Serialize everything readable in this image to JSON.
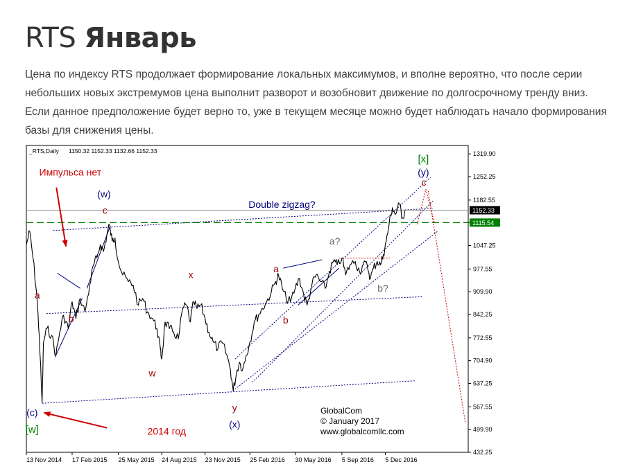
{
  "header": {
    "title_plain": "RTS ",
    "title_bold": "Январь",
    "description": "Цена по индексу RTS продолжает формирование локальных максимумов, и вполне вероятно, что после серии небольших новых экстремумов цена выполнит разворот и возобновит движение по долгосрочному тренду вниз. Если данное предположение будет верно то, уже в текущем месяце можно будет наблюдать начало формирования базы для снижения цены."
  },
  "chart_data": {
    "type": "line",
    "symbol_label": "_RTS,Daily",
    "ohlc_label": "1150.32 1152.33 1132.66 1152.33",
    "ylim": [
      432.25,
      1345
    ],
    "xlim": [
      "2014-11-13",
      "2017-05-28"
    ],
    "y_ticks": [
      "1319.90",
      "1252.25",
      "1182.55",
      "1115.54",
      "1047.25",
      "977.55",
      "909.90",
      "842.25",
      "772.55",
      "704.90",
      "637.25",
      "567.55",
      "499.90",
      "432.25"
    ],
    "x_ticks": [
      {
        "label": "13 Nov 2014",
        "date": "2014-11-13"
      },
      {
        "label": "17 Feb 2015",
        "date": "2015-02-17"
      },
      {
        "label": "25 May 2015",
        "date": "2015-05-25"
      },
      {
        "label": "24 Aug 2015",
        "date": "2015-08-24"
      },
      {
        "label": "23 Nov 2015",
        "date": "2015-11-23"
      },
      {
        "label": "25 Feb 2016",
        "date": "2016-02-25"
      },
      {
        "label": "30 May 2016",
        "date": "2016-05-30"
      },
      {
        "label": "5 Sep 2016",
        "date": "2016-09-05"
      },
      {
        "label": "5 Dec 2016",
        "date": "2016-12-05"
      }
    ],
    "price_labels": [
      {
        "text": "1152.33",
        "value": 1152.33,
        "color": "#000000"
      },
      {
        "text": "1115.54",
        "value": 1115.54,
        "color": "#008000"
      }
    ],
    "series": [
      {
        "color": "#000000",
        "points": [
          [
            "2014-11-13",
            1050
          ],
          [
            "2014-11-20",
            1090
          ],
          [
            "2014-11-27",
            1010
          ],
          [
            "2014-12-05",
            900
          ],
          [
            "2014-12-10",
            780
          ],
          [
            "2014-12-16",
            580
          ],
          [
            "2014-12-19",
            760
          ],
          [
            "2014-12-26",
            800
          ],
          [
            "2015-01-05",
            780
          ],
          [
            "2015-01-14",
            720
          ],
          [
            "2015-01-22",
            790
          ],
          [
            "2015-01-30",
            840
          ],
          [
            "2015-02-09",
            800
          ],
          [
            "2015-02-17",
            880
          ],
          [
            "2015-02-25",
            830
          ],
          [
            "2015-03-06",
            890
          ],
          [
            "2015-03-16",
            850
          ],
          [
            "2015-03-26",
            930
          ],
          [
            "2015-04-03",
            990
          ],
          [
            "2015-04-10",
            1010
          ],
          [
            "2015-04-17",
            1050
          ],
          [
            "2015-04-24",
            1030
          ],
          [
            "2015-05-01",
            1080
          ],
          [
            "2015-05-06",
            1110
          ],
          [
            "2015-05-12",
            1060
          ],
          [
            "2015-05-18",
            1070
          ],
          [
            "2015-05-25",
            1000
          ],
          [
            "2015-06-03",
            960
          ],
          [
            "2015-06-15",
            940
          ],
          [
            "2015-06-25",
            930
          ],
          [
            "2015-07-06",
            870
          ],
          [
            "2015-07-15",
            890
          ],
          [
            "2015-07-25",
            850
          ],
          [
            "2015-08-05",
            830
          ],
          [
            "2015-08-14",
            800
          ],
          [
            "2015-08-21",
            740
          ],
          [
            "2015-08-24",
            710
          ],
          [
            "2015-08-31",
            820
          ],
          [
            "2015-09-09",
            800
          ],
          [
            "2015-09-18",
            790
          ],
          [
            "2015-09-28",
            770
          ],
          [
            "2015-10-07",
            860
          ],
          [
            "2015-10-15",
            870
          ],
          [
            "2015-10-23",
            820
          ],
          [
            "2015-10-30",
            880
          ],
          [
            "2015-11-06",
            860
          ],
          [
            "2015-11-14",
            870
          ],
          [
            "2015-11-23",
            830
          ],
          [
            "2015-12-01",
            790
          ],
          [
            "2015-12-10",
            760
          ],
          [
            "2015-12-20",
            740
          ],
          [
            "2015-12-28",
            760
          ],
          [
            "2016-01-08",
            720
          ],
          [
            "2016-01-15",
            680
          ],
          [
            "2016-01-21",
            615
          ],
          [
            "2016-01-28",
            670
          ],
          [
            "2016-02-03",
            700
          ],
          [
            "2016-02-10",
            680
          ],
          [
            "2016-02-17",
            720
          ],
          [
            "2016-02-25",
            760
          ],
          [
            "2016-03-05",
            820
          ],
          [
            "2016-03-14",
            840
          ],
          [
            "2016-03-22",
            860
          ],
          [
            "2016-03-31",
            880
          ],
          [
            "2016-04-10",
            910
          ],
          [
            "2016-04-19",
            940
          ],
          [
            "2016-04-25",
            960
          ],
          [
            "2016-05-03",
            920
          ],
          [
            "2016-05-11",
            890
          ],
          [
            "2016-05-20",
            880
          ],
          [
            "2016-05-30",
            920
          ],
          [
            "2016-06-08",
            950
          ],
          [
            "2016-06-17",
            900
          ],
          [
            "2016-06-24",
            870
          ],
          [
            "2016-07-04",
            930
          ],
          [
            "2016-07-13",
            960
          ],
          [
            "2016-07-22",
            940
          ],
          [
            "2016-08-01",
            920
          ],
          [
            "2016-08-10",
            970
          ],
          [
            "2016-08-18",
            1000
          ],
          [
            "2016-08-26",
            990
          ],
          [
            "2016-09-05",
            1010
          ],
          [
            "2016-09-13",
            960
          ],
          [
            "2016-09-22",
            990
          ],
          [
            "2016-10-03",
            1000
          ],
          [
            "2016-10-12",
            970
          ],
          [
            "2016-10-20",
            990
          ],
          [
            "2016-10-28",
            990
          ],
          [
            "2016-11-04",
            950
          ],
          [
            "2016-11-10",
            980
          ],
          [
            "2016-11-18",
            1000
          ],
          [
            "2016-11-25",
            990
          ],
          [
            "2016-12-01",
            1020
          ],
          [
            "2016-12-07",
            1060
          ],
          [
            "2016-12-13",
            1110
          ],
          [
            "2016-12-20",
            1160
          ],
          [
            "2016-12-26",
            1140
          ],
          [
            "2017-01-04",
            1170
          ],
          [
            "2017-01-10",
            1130
          ],
          [
            "2017-01-16",
            1152
          ]
        ]
      }
    ],
    "lines": [
      {
        "style": "dotted",
        "color": "#000080",
        "points": [
          [
            "2015-01-08",
            1092
          ],
          [
            "2017-03-15",
            1158
          ]
        ]
      },
      {
        "style": "dotted",
        "color": "#000080",
        "points": [
          [
            "2014-12-25",
            845
          ],
          [
            "2017-02-20",
            895
          ]
        ]
      },
      {
        "style": "dotted",
        "color": "#000080",
        "points": [
          [
            "2014-12-16",
            578
          ],
          [
            "2017-02-05",
            645
          ]
        ]
      },
      {
        "style": "dashed",
        "color": "#008000",
        "points": [
          [
            "2014-11-13",
            1115.54
          ],
          [
            "2017-05-28",
            1115.54
          ]
        ]
      },
      {
        "style": "solid",
        "color": "#999999",
        "points": [
          [
            "2014-11-13",
            1152.33
          ],
          [
            "2017-05-28",
            1152.33
          ]
        ]
      },
      {
        "style": "solid",
        "color": "#000080",
        "points": [
          [
            "2015-01-12",
            715
          ],
          [
            "2015-03-10",
            890
          ]
        ]
      },
      {
        "style": "solid",
        "color": "#000080",
        "points": [
          [
            "2015-01-17",
            965
          ],
          [
            "2015-03-06",
            920
          ]
        ]
      },
      {
        "style": "solid",
        "color": "#000080",
        "points": [
          [
            "2015-03-20",
            920
          ],
          [
            "2015-05-08",
            1105
          ]
        ]
      },
      {
        "style": "solid",
        "color": "#000080",
        "points": [
          [
            "2016-06-05",
            870
          ],
          [
            "2016-08-30",
            980
          ]
        ]
      },
      {
        "style": "solid",
        "color": "#000080",
        "points": [
          [
            "2016-05-05",
            980
          ],
          [
            "2016-07-25",
            1005
          ]
        ]
      },
      {
        "style": "dotted",
        "color": "#000080",
        "points": [
          [
            "2016-01-25",
            710
          ],
          [
            "2017-03-10",
            1250
          ]
        ]
      },
      {
        "style": "dotted",
        "color": "#000080",
        "points": [
          [
            "2016-03-01",
            640
          ],
          [
            "2017-03-15",
            1180
          ]
        ]
      },
      {
        "style": "dotted",
        "color": "#000080",
        "points": [
          [
            "2016-01-20",
            615
          ],
          [
            "2017-03-25",
            1090
          ]
        ]
      },
      {
        "style": "dotted",
        "color": "#cc0000",
        "points": [
          [
            "2016-08-30",
            1010
          ],
          [
            "2016-12-15",
            1010
          ]
        ]
      },
      {
        "style": "dotted",
        "color": "#cc0000",
        "points": [
          [
            "2017-02-10",
            1110
          ],
          [
            "2017-02-28",
            1215
          ]
        ]
      },
      {
        "style": "dotted",
        "color": "#cc0000",
        "points": [
          [
            "2017-02-28",
            1215
          ],
          [
            "2017-03-18",
            1115
          ]
        ]
      },
      {
        "style": "dotted",
        "color": "#cc0000",
        "points": [
          [
            "2017-03-05",
            1210
          ],
          [
            "2017-05-22",
            520
          ]
        ]
      }
    ],
    "wave_labels": [
      {
        "text": "(w)",
        "date": "2015-04-25",
        "value": 1190,
        "color": "#000080",
        "size": 14
      },
      {
        "text": "c",
        "date": "2015-04-27",
        "value": 1142,
        "color": "#990000",
        "size": 14
      },
      {
        "text": "a",
        "date": "2014-12-06",
        "value": 890,
        "color": "#990000",
        "size": 14
      },
      {
        "text": "b",
        "date": "2015-02-15",
        "value": 820,
        "color": "#990000",
        "size": 14
      },
      {
        "text": "w",
        "date": "2015-08-04",
        "value": 658,
        "color": "#990000",
        "size": 14
      },
      {
        "text": "x",
        "date": "2015-10-24",
        "value": 950,
        "color": "#990000",
        "size": 14
      },
      {
        "text": "y",
        "date": "2016-01-24",
        "value": 555,
        "color": "#990000",
        "size": 14
      },
      {
        "text": "(x)",
        "date": "2016-01-24",
        "value": 505,
        "color": "#000080",
        "size": 14
      },
      {
        "text": "(c)",
        "date": "2014-11-25",
        "value": 540,
        "color": "#000080",
        "size": 14
      },
      {
        "text": "[w]",
        "date": "2014-11-25",
        "value": 490,
        "color": "#008000",
        "size": 15
      },
      {
        "text": "a",
        "date": "2016-04-20",
        "value": 968,
        "color": "#990000",
        "size": 14
      },
      {
        "text": "b",
        "date": "2016-05-10",
        "value": 815,
        "color": "#990000",
        "size": 14
      },
      {
        "text": "a?",
        "date": "2016-08-21",
        "value": 1050,
        "color": "#666666",
        "size": 14
      },
      {
        "text": "b?",
        "date": "2016-11-30",
        "value": 910,
        "color": "#666666",
        "size": 14
      },
      {
        "text": "c",
        "date": "2017-02-24",
        "value": 1225,
        "color": "#990000",
        "size": 14
      },
      {
        "text": "(y)",
        "date": "2017-02-23",
        "value": 1255,
        "color": "#000080",
        "size": 14
      },
      {
        "text": "[x]",
        "date": "2017-02-23",
        "value": 1295,
        "color": "#008000",
        "size": 15
      }
    ],
    "annotations": [
      {
        "text": "Импульса нет",
        "date": "2014-12-10",
        "value": 1255,
        "color": "#cc0000",
        "size": 14
      },
      {
        "text": "Double zigzag?",
        "date": "2016-02-22",
        "value": 1160,
        "color": "#000080",
        "size": 14
      },
      {
        "text": "2014 год",
        "date": "2015-07-25",
        "value": 485,
        "color": "#cc0000",
        "size": 14
      }
    ],
    "arrows": [
      {
        "color": "#cc0000",
        "from": [
          "2015-01-15",
          1220
        ],
        "to": [
          "2015-02-04",
          1045
        ]
      },
      {
        "color": "#cc0000",
        "from": [
          "2015-05-01",
          505
        ],
        "to": [
          "2014-12-20",
          550
        ]
      }
    ],
    "watermark": [
      "GlobalCom",
      "© January 2017",
      "www.globalcomllc.com"
    ]
  }
}
